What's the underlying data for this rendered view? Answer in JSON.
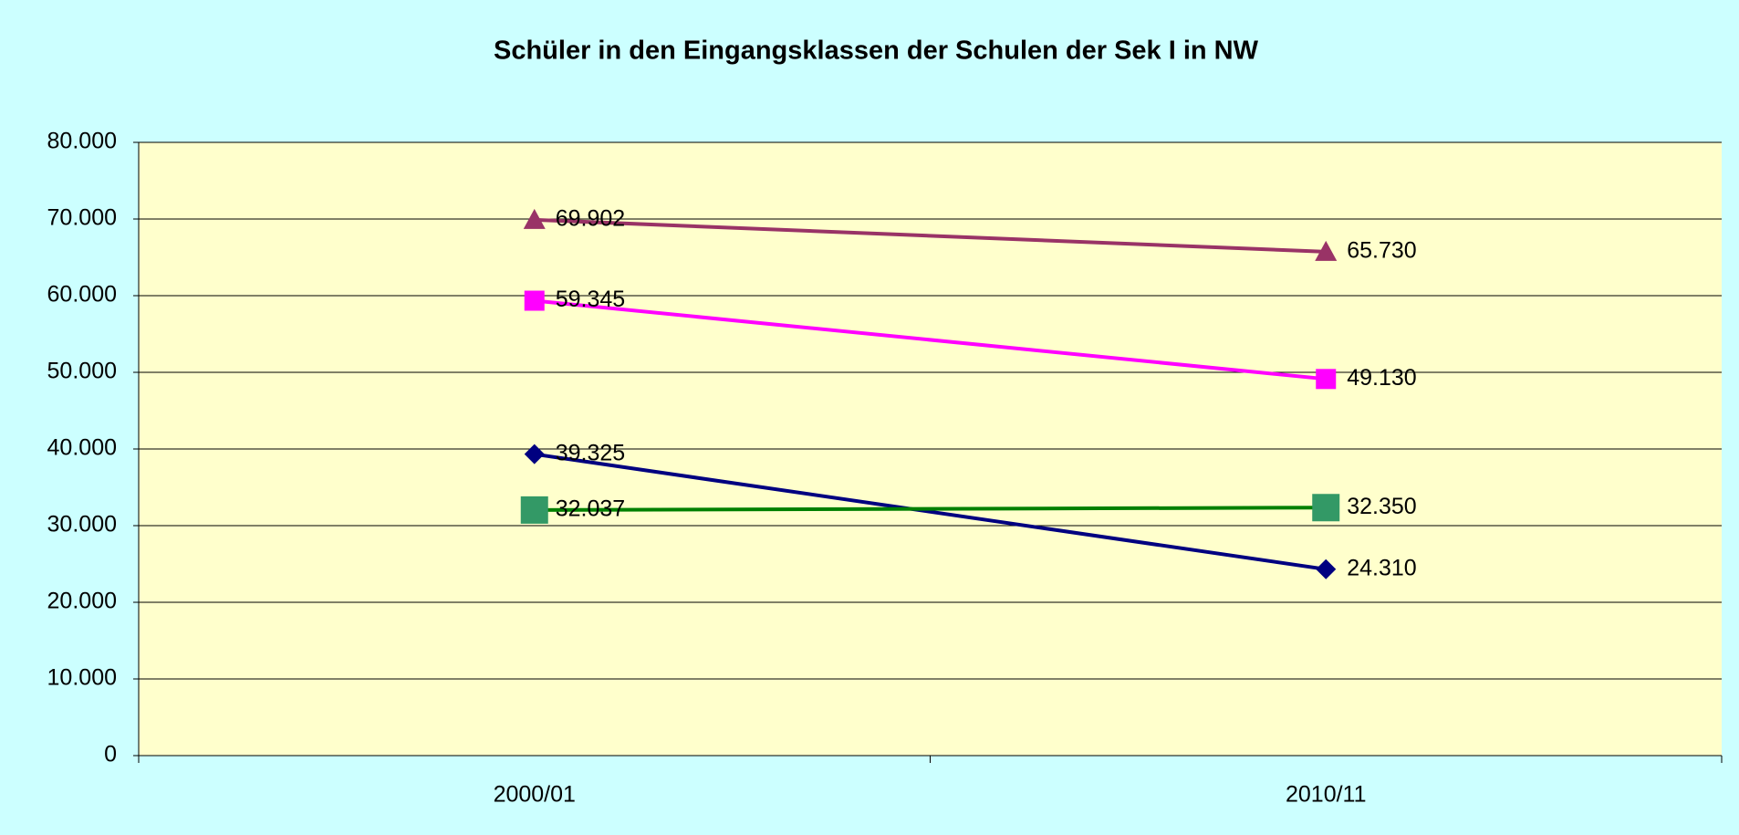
{
  "chart_data": {
    "type": "line",
    "title": "Schüler in den Eingangsklassen der Schulen der Sek I in NW",
    "categories": [
      "2000/01",
      "2010/11"
    ],
    "series": [
      {
        "color": "#993366",
        "marker": "triangle",
        "values": [
          69902,
          65730
        ],
        "value_labels": [
          "69.902",
          "65.730"
        ]
      },
      {
        "color": "#ff00ff",
        "marker": "square",
        "values": [
          59345,
          49130
        ],
        "value_labels": [
          "59.345",
          "49.130"
        ]
      },
      {
        "color": "#000080",
        "marker": "diamond",
        "values": [
          39325,
          24310
        ],
        "value_labels": [
          "39.325",
          "24.310"
        ]
      },
      {
        "color": "#008000",
        "marker_color": "#339966",
        "marker": "big-square",
        "values": [
          32037,
          32350
        ],
        "value_labels": [
          "32.037",
          "32.350"
        ]
      }
    ],
    "ylim": [
      0,
      80000
    ],
    "yticks": [
      0,
      {
        "value": 10000,
        "label": "10.000"
      },
      {
        "value": 20000,
        "label": "20.000"
      },
      {
        "value": 30000,
        "label": "30.000"
      },
      {
        "value": 40000,
        "label": "40.000"
      },
      {
        "value": 50000,
        "label": "50.000"
      },
      {
        "value": 60000,
        "label": "60.000"
      },
      {
        "value": 70000,
        "label": "70.000"
      },
      {
        "value": 80000,
        "label": "80.000"
      }
    ],
    "grid": true,
    "background": "#ccffff",
    "plot_background": "#ffffcc"
  }
}
